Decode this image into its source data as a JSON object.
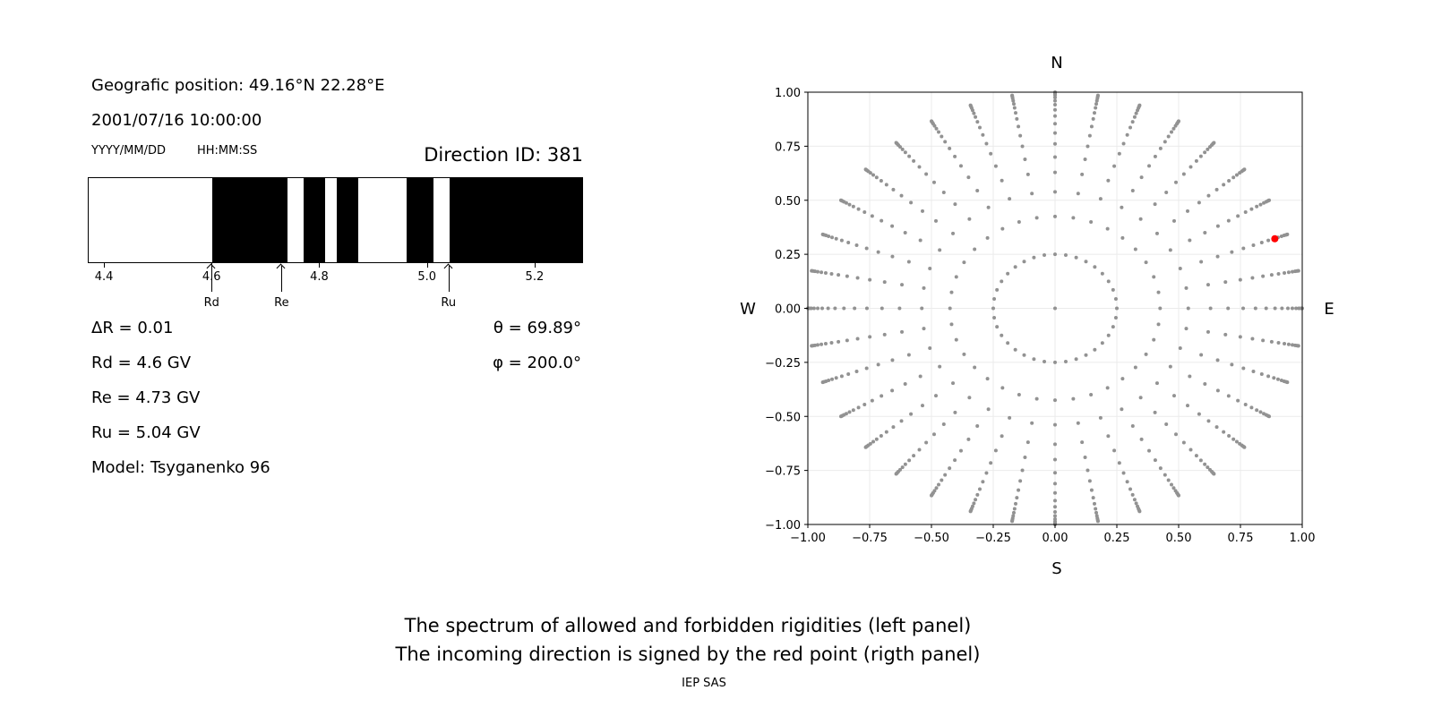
{
  "left_panel": {
    "geo_position": "Geografic position: 49.16°N 22.28°E",
    "datetime": "2001/07/16 10:00:00",
    "date_format": "YYYY/MM/DD",
    "time_format": "HH:MM:SS",
    "direction_id": "Direction ID: 381",
    "delta_r": "ΔR = 0.01",
    "rd": "Rd = 4.6 GV",
    "re": "Re = 4.73 GV",
    "ru": "Ru = 5.04 GV",
    "model": "Model: Tsyganenko 96",
    "theta": "θ = 69.89°",
    "phi": "φ = 200.0°"
  },
  "footer": {
    "line1": "The spectrum of allowed and forbidden rigidities (left panel)",
    "line2": "The incoming direction is signed by the red point (rigth panel)",
    "credit": "IEP SAS"
  },
  "chart_data": [
    {
      "type": "bar",
      "description_kind": "rigidity spectrum (black = forbidden, white = allowed)",
      "xlim": [
        4.37,
        5.29
      ],
      "xticks": [
        "4.4",
        "4.6",
        "4.8",
        "5.0",
        "5.2"
      ],
      "xtick_values": [
        4.4,
        4.6,
        4.8,
        5.0,
        5.2
      ],
      "forbidden_intervals": [
        [
          4.6,
          4.74
        ],
        [
          4.77,
          4.81
        ],
        [
          4.83,
          4.87
        ],
        [
          4.96,
          5.01
        ],
        [
          5.04,
          5.29
        ]
      ],
      "colors": {
        "forbidden": "#000000",
        "allowed": "#ffffff"
      },
      "markers": [
        {
          "label": "Rd",
          "value": 4.6
        },
        {
          "label": "Re",
          "value": 4.73
        },
        {
          "label": "Ru",
          "value": 5.04
        }
      ]
    },
    {
      "type": "scatter",
      "xlim": [
        -1.0,
        1.0
      ],
      "ylim": [
        -1.0,
        1.0
      ],
      "xticks": [
        "−1.00",
        "−0.75",
        "−0.50",
        "−0.25",
        "0.00",
        "0.25",
        "0.50",
        "0.75",
        "1.00"
      ],
      "yticks": [
        "−1.00",
        "−0.75",
        "−0.50",
        "−0.25",
        "0.00",
        "0.25",
        "0.50",
        "0.75",
        "1.00"
      ],
      "tick_values": [
        -1,
        -0.75,
        -0.5,
        -0.25,
        0,
        0.25,
        0.5,
        0.75,
        1
      ],
      "grid": true,
      "compass": {
        "north": "N",
        "south": "S",
        "west": "W",
        "east": "E"
      },
      "direction_grid": {
        "azimuth_step_deg": 10,
        "radii": [
          0.25,
          0.425,
          0.539,
          0.629,
          0.7,
          0.761,
          0.811,
          0.854,
          0.89,
          0.918,
          0.942,
          0.96,
          0.975,
          0.986,
          0.993,
          0.998,
          1.0
        ],
        "center_point": [
          0,
          0
        ],
        "color": "#929292"
      },
      "highlight_point": {
        "x": 0.889,
        "y": 0.322,
        "color": "#ff0000"
      }
    }
  ]
}
